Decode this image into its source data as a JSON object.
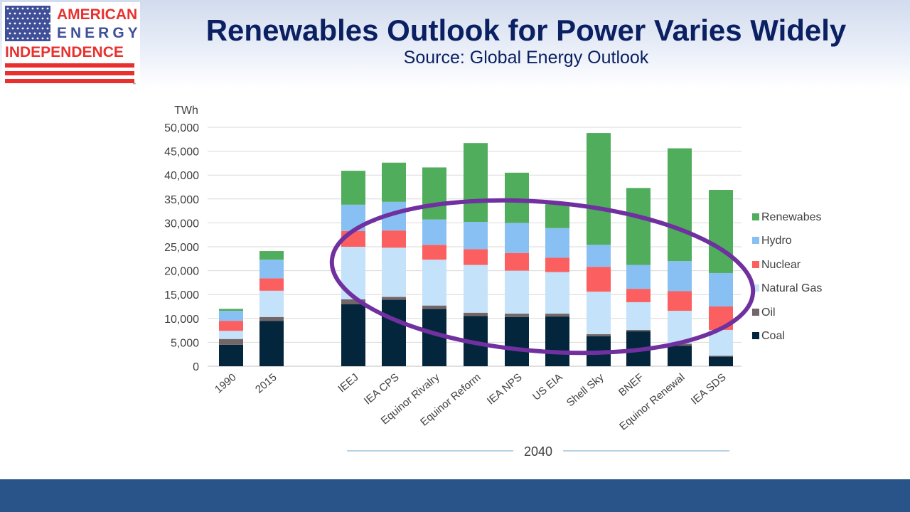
{
  "header": {
    "title": "Renewables Outlook for Power Varies Widely",
    "subtitle": "Source: Global Energy Outlook"
  },
  "logo": {
    "line1": "AMERICAN",
    "line2": "ENERGY",
    "line3": "INDEPENDENCE",
    "trademark": "™",
    "colors": {
      "red": "#e8312f",
      "blue": "#3f4f98"
    }
  },
  "chart_data": {
    "type": "bar",
    "stacked": true,
    "ylabel": "TWh",
    "ylim": [
      0,
      50000
    ],
    "yticks": [
      0,
      5000,
      10000,
      15000,
      20000,
      25000,
      30000,
      35000,
      40000,
      45000,
      50000
    ],
    "ytick_labels": [
      "0",
      "5,000",
      "10,000",
      "15,000",
      "20,000",
      "25,000",
      "30,000",
      "35,000",
      "40,000",
      "45,000",
      "50,000"
    ],
    "categories": [
      "1990",
      "2015",
      "IEEJ",
      "IEA CPS",
      "Equinor Rivalry",
      "Equinor Reform",
      "IEA NPS",
      "US EIA",
      "Shell Sky",
      "BNEF",
      "Equinor Renewal",
      "IEA SDS"
    ],
    "group_label": "2040",
    "grid": true,
    "legend_position": "right",
    "series": [
      {
        "name": "Coal",
        "color": "#03263d",
        "values": [
          4500,
          9500,
          13000,
          13900,
          12000,
          10500,
          10300,
          10400,
          6300,
          7300,
          4300,
          2000
        ]
      },
      {
        "name": "Oil",
        "color": "#726667",
        "values": [
          1200,
          800,
          1000,
          600,
          700,
          700,
          700,
          600,
          400,
          300,
          400,
          200
        ]
      },
      {
        "name": "Natural Gas",
        "color": "#c4e2f9",
        "values": [
          1700,
          5500,
          11000,
          10300,
          9600,
          10000,
          9000,
          8700,
          8900,
          5800,
          6900,
          5400
        ]
      },
      {
        "name": "Nuclear",
        "color": "#fb5f5f",
        "values": [
          2100,
          2600,
          3300,
          3600,
          3100,
          3300,
          3700,
          3000,
          5200,
          2800,
          4100,
          4900
        ]
      },
      {
        "name": "Hydro",
        "color": "#89c0f3",
        "values": [
          2100,
          3900,
          5500,
          6000,
          5300,
          5700,
          6300,
          6200,
          4600,
          5000,
          6300,
          7000
        ]
      },
      {
        "name": "Renewabes",
        "color": "#4fad5c",
        "values": [
          400,
          1800,
          7100,
          8200,
          10900,
          16500,
          10500,
          5000,
          23400,
          16100,
          23600,
          17400
        ]
      }
    ],
    "legend_order": [
      "Renewabes",
      "Hydro",
      "Nuclear",
      "Natural Gas",
      "Oil",
      "Coal"
    ],
    "annotation": {
      "shape": "ellipse",
      "color": "#7030a0",
      "description": "highlight"
    }
  }
}
